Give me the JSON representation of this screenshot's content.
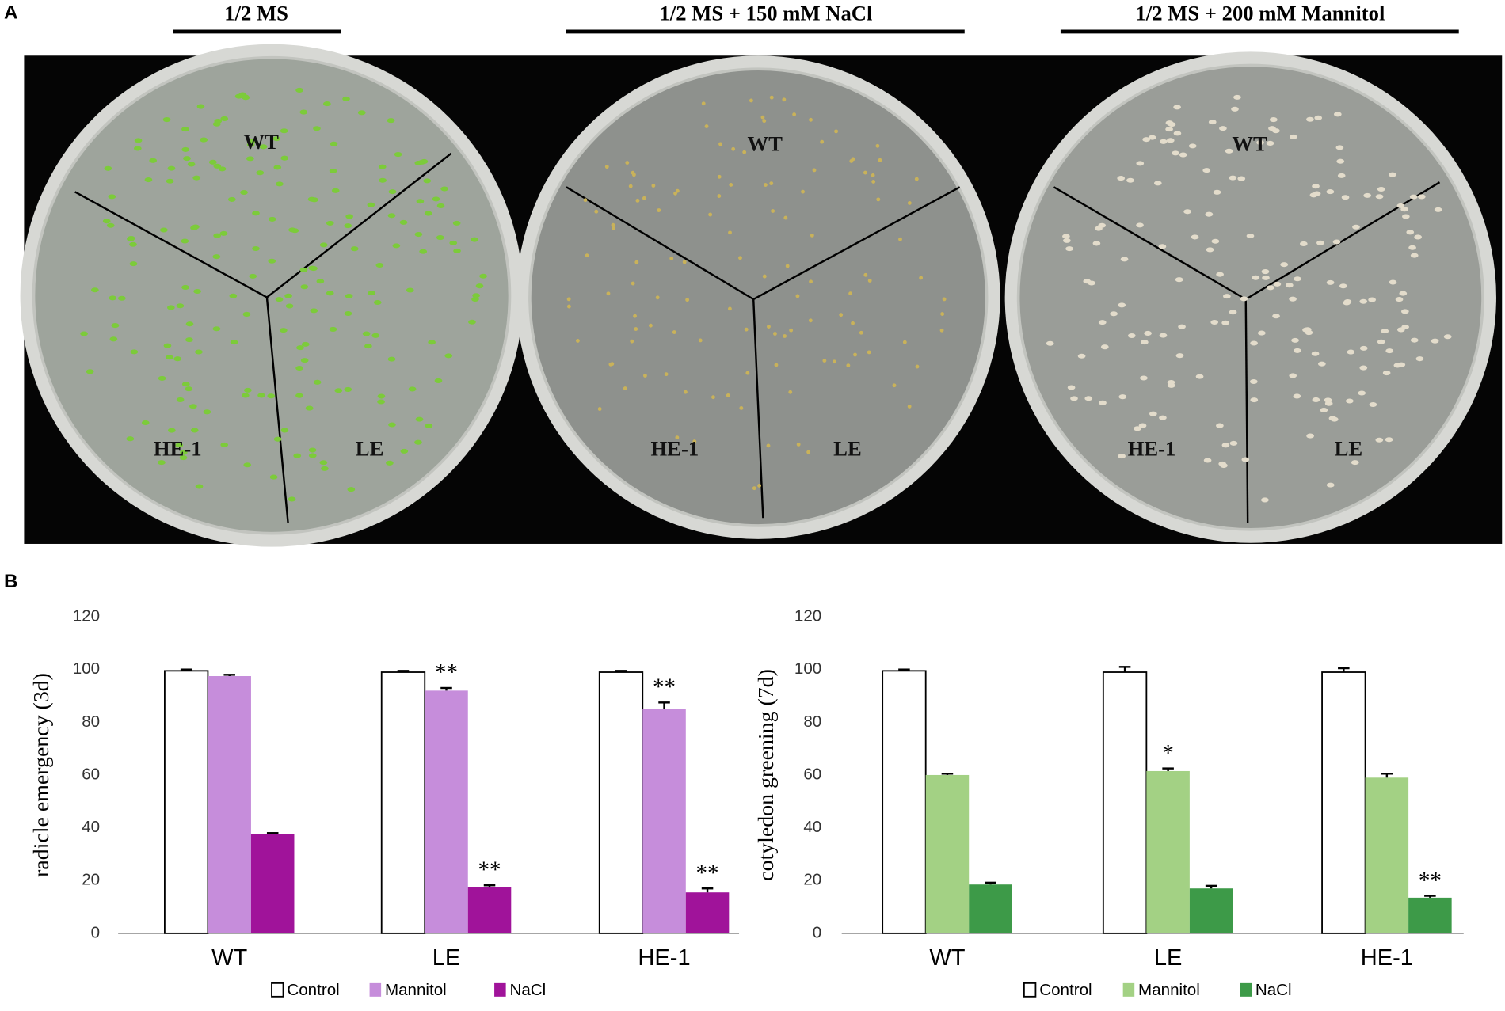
{
  "panel_labels": [
    "A",
    "B"
  ],
  "panel_a": {
    "conditions": [
      "1/2 MS",
      "1/2 MS + 150 mM NaCl",
      "1/2 MS + 200 mM Mannitol"
    ],
    "plates": [
      {
        "labels": [
          "WT",
          "HE-1",
          "LE"
        ]
      },
      {
        "labels": [
          "WT",
          "HE-1",
          "LE"
        ]
      },
      {
        "labels": [
          "WT",
          "HE-1",
          "LE"
        ]
      }
    ]
  },
  "chart_data": [
    {
      "type": "bar",
      "y_label": "radicle emergency (3d)",
      "categories": [
        "WT",
        "LE",
        "HE-1"
      ],
      "series": [
        {
          "name": "Control",
          "color": "#ffffff",
          "values": [
            99.5,
            99,
            99
          ],
          "errors": [
            0.5,
            0.5,
            0.5
          ]
        },
        {
          "name": "Mannitol",
          "color": "#c68ddb",
          "values": [
            97.5,
            92,
            85
          ],
          "errors": [
            0.5,
            1,
            2.5
          ]
        },
        {
          "name": "NaCl",
          "color": "#a0139a",
          "values": [
            37.5,
            17.5,
            15.5
          ],
          "errors": [
            0.5,
            0.7,
            1.5
          ]
        }
      ],
      "annotations": [
        {
          "series": 1,
          "index": 1,
          "text": "**"
        },
        {
          "series": 2,
          "index": 1,
          "text": "**"
        },
        {
          "series": 1,
          "index": 2,
          "text": "**"
        },
        {
          "series": 2,
          "index": 2,
          "text": "**"
        }
      ],
      "ylim": [
        0,
        120
      ],
      "yticks": [
        0,
        20,
        40,
        60,
        80,
        100,
        120
      ],
      "grid": false,
      "legend": "bottom"
    },
    {
      "type": "bar",
      "y_label": "cotyledon greening (7d)",
      "categories": [
        "WT",
        "LE",
        "HE-1"
      ],
      "series": [
        {
          "name": "Control",
          "color": "#ffffff",
          "values": [
            99.5,
            99,
            99
          ],
          "errors": [
            0.5,
            2,
            1.5
          ]
        },
        {
          "name": "Mannitol",
          "color": "#a3d184",
          "values": [
            60,
            61.5,
            59
          ],
          "errors": [
            0.5,
            1,
            1.5
          ]
        },
        {
          "name": "NaCl",
          "color": "#3d9a48",
          "values": [
            18.5,
            17,
            13.5
          ],
          "errors": [
            0.7,
            1,
            0.7
          ]
        }
      ],
      "annotations": [
        {
          "series": 1,
          "index": 1,
          "text": "*"
        },
        {
          "series": 2,
          "index": 2,
          "text": "**"
        }
      ],
      "ylim": [
        0,
        120
      ],
      "yticks": [
        0,
        20,
        40,
        60,
        80,
        100,
        120
      ],
      "grid": false,
      "legend": "bottom"
    }
  ]
}
